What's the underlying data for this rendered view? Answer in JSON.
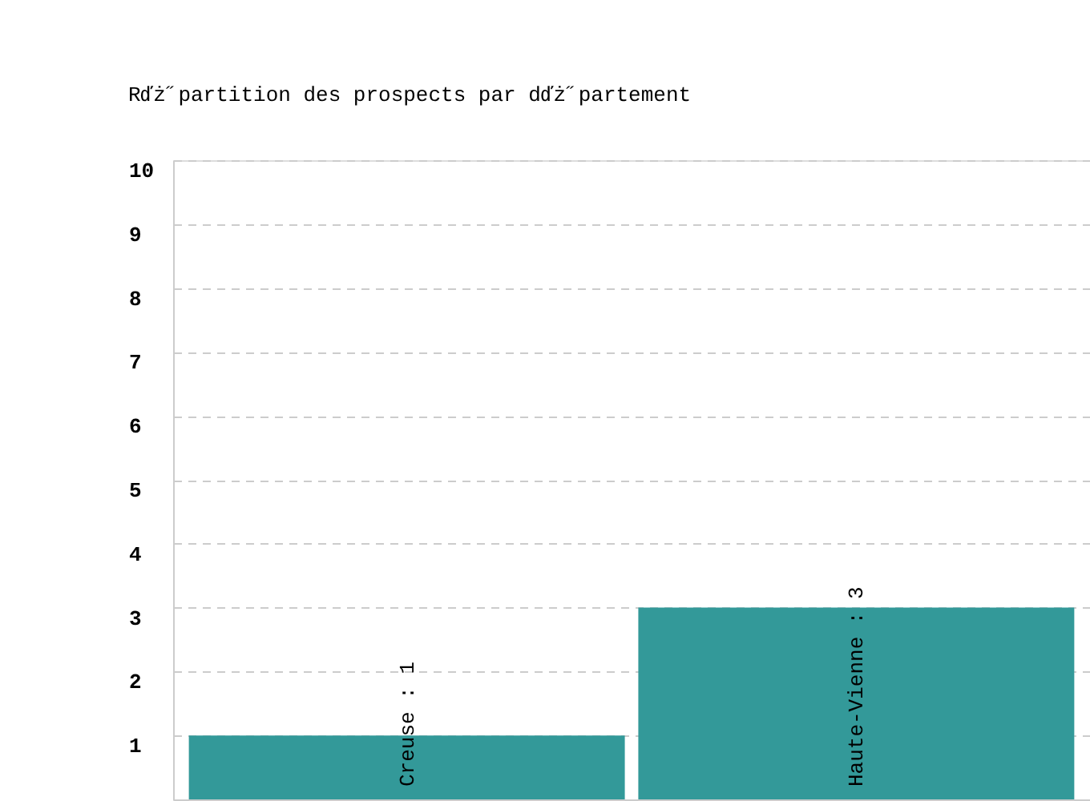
{
  "chart_data": {
    "type": "bar",
    "title": "Rďż˝partition des prospects par dďż˝partement",
    "categories": [
      null,
      null
    ],
    "values": [
      1,
      3
    ],
    "color": "#339999",
    "value_labels": [
      "Creuse : 1",
      "Haute-Vienne : 3"
    ],
    "ylim": [
      0,
      10
    ],
    "yticks": [
      1,
      2,
      3,
      4,
      5,
      6,
      7,
      8,
      9,
      10
    ],
    "grid": "y",
    "tick_labels": "y"
  }
}
